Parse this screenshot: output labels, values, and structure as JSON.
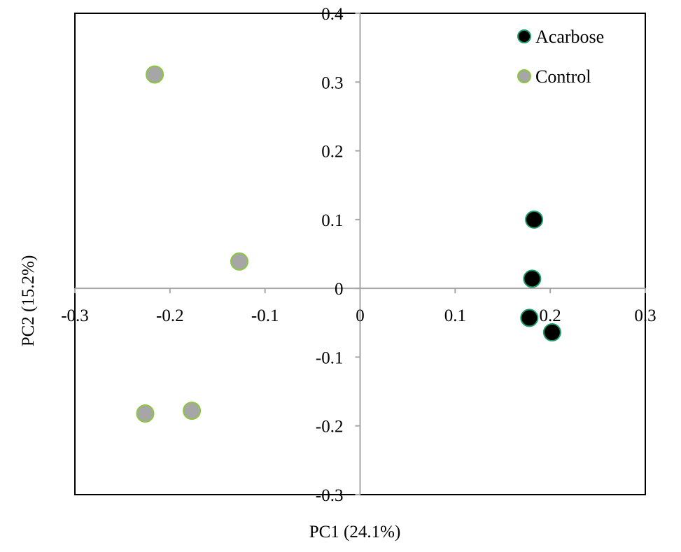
{
  "chart_data": {
    "type": "scatter",
    "title": "",
    "xlabel": "PC1 (24.1%)",
    "ylabel": "PC2 (15.2%)",
    "xlim": [
      -0.3,
      0.3
    ],
    "ylim": [
      -0.3,
      0.4
    ],
    "x_ticks": [
      -0.3,
      -0.2,
      -0.1,
      0,
      0.1,
      0.2,
      0.3
    ],
    "y_ticks": [
      -0.3,
      -0.2,
      -0.1,
      0,
      0.1,
      0.2,
      0.3,
      0.4
    ],
    "x_tick_labels": [
      "-0.3",
      "-0.2",
      "-0.1",
      "0",
      "0.1",
      "0.2",
      "0.3"
    ],
    "y_tick_labels": [
      "-0.3",
      "-0.2",
      "-0.1",
      "0",
      "0.1",
      "0.2",
      "0.3",
      "0.4"
    ],
    "grid": false,
    "legend_position": "top-right",
    "series": [
      {
        "name": "Acarbose",
        "color": "#000000",
        "edge_color": "#1a9e6a",
        "points": [
          {
            "x": 0.183,
            "y": 0.1
          },
          {
            "x": 0.181,
            "y": 0.014
          },
          {
            "x": 0.178,
            "y": -0.043
          },
          {
            "x": 0.202,
            "y": -0.064
          }
        ]
      },
      {
        "name": "Control",
        "color": "#a6a6a6",
        "edge_color": "#8cc63f",
        "points": [
          {
            "x": -0.216,
            "y": 0.311
          },
          {
            "x": -0.127,
            "y": 0.039
          },
          {
            "x": -0.226,
            "y": -0.182
          },
          {
            "x": -0.177,
            "y": -0.178
          }
        ]
      }
    ]
  }
}
